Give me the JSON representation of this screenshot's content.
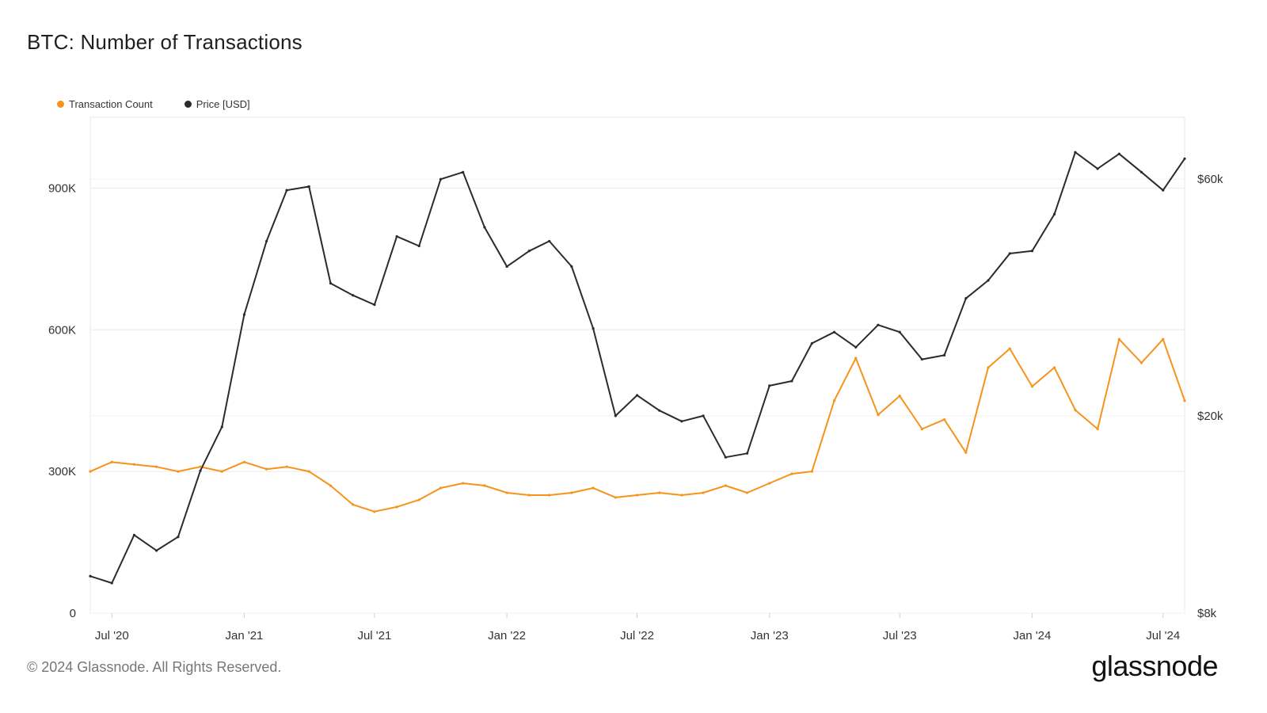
{
  "title": "BTC: Number of Transactions",
  "footer": "© 2024 Glassnode. All Rights Reserved.",
  "brand": "glassnode",
  "colors": {
    "transactions": "#f7931a",
    "price": "#2b2b2b",
    "grid": "#e9e9e9",
    "axis": "#cfcfcf"
  },
  "chart_data": {
    "type": "line",
    "title": "BTC: Number of Transactions",
    "grid": true,
    "legend_position": "top-left",
    "x_ticks": [
      "Jul '20",
      "Jan '21",
      "Jul '21",
      "Jan '22",
      "Jul '22",
      "Jan '23",
      "Jul '23",
      "Jan '24",
      "Jul '24"
    ],
    "x_range": [
      "2020-06-01",
      "2024-07-31"
    ],
    "y_left": {
      "ticks": [
        "0",
        "300K",
        "600K",
        "900K"
      ],
      "tick_values": [
        0,
        300000,
        600000,
        900000
      ],
      "range": [
        0,
        1050000
      ],
      "scale": "linear"
    },
    "y_right": {
      "ticks": [
        "$8k",
        "$20k",
        "$60k"
      ],
      "tick_values": [
        8000,
        20000,
        60000
      ],
      "range": [
        8000,
        80000
      ],
      "scale": "log"
    },
    "series": [
      {
        "name": "Transaction Count",
        "axis": "left",
        "points": [
          [
            "2020-06-01",
            300000
          ],
          [
            "2020-07-01",
            320000
          ],
          [
            "2020-08-01",
            315000
          ],
          [
            "2020-09-01",
            310000
          ],
          [
            "2020-10-01",
            300000
          ],
          [
            "2020-11-01",
            310000
          ],
          [
            "2020-12-01",
            300000
          ],
          [
            "2021-01-01",
            320000
          ],
          [
            "2021-02-01",
            305000
          ],
          [
            "2021-03-01",
            310000
          ],
          [
            "2021-04-01",
            300000
          ],
          [
            "2021-05-01",
            270000
          ],
          [
            "2021-06-01",
            230000
          ],
          [
            "2021-07-01",
            215000
          ],
          [
            "2021-08-01",
            225000
          ],
          [
            "2021-09-01",
            240000
          ],
          [
            "2021-10-01",
            265000
          ],
          [
            "2021-11-01",
            275000
          ],
          [
            "2021-12-01",
            270000
          ],
          [
            "2022-01-01",
            255000
          ],
          [
            "2022-02-01",
            250000
          ],
          [
            "2022-03-01",
            250000
          ],
          [
            "2022-04-01",
            255000
          ],
          [
            "2022-05-01",
            265000
          ],
          [
            "2022-06-01",
            245000
          ],
          [
            "2022-07-01",
            250000
          ],
          [
            "2022-08-01",
            255000
          ],
          [
            "2022-09-01",
            250000
          ],
          [
            "2022-10-01",
            255000
          ],
          [
            "2022-11-01",
            270000
          ],
          [
            "2022-12-01",
            255000
          ],
          [
            "2023-01-01",
            275000
          ],
          [
            "2023-02-01",
            295000
          ],
          [
            "2023-03-01",
            300000
          ],
          [
            "2023-04-01",
            450000
          ],
          [
            "2023-05-01",
            540000
          ],
          [
            "2023-06-01",
            420000
          ],
          [
            "2023-07-01",
            460000
          ],
          [
            "2023-08-01",
            390000
          ],
          [
            "2023-09-01",
            410000
          ],
          [
            "2023-10-01",
            340000
          ],
          [
            "2023-11-01",
            520000
          ],
          [
            "2023-12-01",
            560000
          ],
          [
            "2024-01-01",
            480000
          ],
          [
            "2024-02-01",
            520000
          ],
          [
            "2024-03-01",
            430000
          ],
          [
            "2024-04-01",
            390000
          ],
          [
            "2024-05-01",
            580000
          ],
          [
            "2024-06-01",
            530000
          ],
          [
            "2024-07-01",
            580000
          ],
          [
            "2024-07-31",
            450000
          ]
        ]
      },
      {
        "name": "Price [USD]",
        "axis": "right",
        "points": [
          [
            "2020-06-01",
            9500
          ],
          [
            "2020-07-01",
            9200
          ],
          [
            "2020-08-01",
            11500
          ],
          [
            "2020-09-01",
            10700
          ],
          [
            "2020-10-01",
            11400
          ],
          [
            "2020-11-01",
            15500
          ],
          [
            "2020-12-01",
            19000
          ],
          [
            "2021-01-01",
            32000
          ],
          [
            "2021-02-01",
            45000
          ],
          [
            "2021-03-01",
            57000
          ],
          [
            "2021-04-01",
            58000
          ],
          [
            "2021-05-01",
            37000
          ],
          [
            "2021-06-01",
            35000
          ],
          [
            "2021-07-01",
            33500
          ],
          [
            "2021-08-01",
            46000
          ],
          [
            "2021-09-01",
            44000
          ],
          [
            "2021-10-01",
            60000
          ],
          [
            "2021-11-01",
            62000
          ],
          [
            "2021-12-01",
            48000
          ],
          [
            "2022-01-01",
            40000
          ],
          [
            "2022-02-01",
            43000
          ],
          [
            "2022-03-01",
            45000
          ],
          [
            "2022-04-01",
            40000
          ],
          [
            "2022-05-01",
            30000
          ],
          [
            "2022-06-01",
            20000
          ],
          [
            "2022-07-01",
            22000
          ],
          [
            "2022-08-01",
            20500
          ],
          [
            "2022-09-01",
            19500
          ],
          [
            "2022-10-01",
            20000
          ],
          [
            "2022-11-01",
            16500
          ],
          [
            "2022-12-01",
            16800
          ],
          [
            "2023-01-01",
            23000
          ],
          [
            "2023-02-01",
            23500
          ],
          [
            "2023-03-01",
            28000
          ],
          [
            "2023-04-01",
            29500
          ],
          [
            "2023-05-01",
            27500
          ],
          [
            "2023-06-01",
            30500
          ],
          [
            "2023-07-01",
            29500
          ],
          [
            "2023-08-01",
            26000
          ],
          [
            "2023-09-01",
            26500
          ],
          [
            "2023-10-01",
            34500
          ],
          [
            "2023-11-01",
            37500
          ],
          [
            "2023-12-01",
            42500
          ],
          [
            "2024-01-01",
            43000
          ],
          [
            "2024-02-01",
            51000
          ],
          [
            "2024-03-01",
            68000
          ],
          [
            "2024-04-01",
            63000
          ],
          [
            "2024-05-01",
            67500
          ],
          [
            "2024-06-01",
            62000
          ],
          [
            "2024-07-01",
            57000
          ],
          [
            "2024-07-31",
            66000
          ]
        ]
      }
    ]
  }
}
